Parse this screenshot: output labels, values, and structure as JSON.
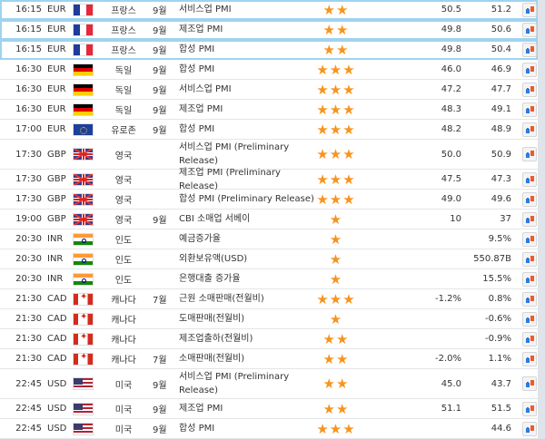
{
  "colors": {
    "star": "#f7941d",
    "highlight_border": "#9fd3ee"
  },
  "rows": [
    {
      "time": "16:15",
      "currency": "EUR",
      "flag": "fr",
      "country": "프랑스",
      "month": "9월",
      "event": "서비스업 PMI",
      "stars": "★★",
      "forecast": "50.5",
      "previous": "51.2",
      "highlight": true
    },
    {
      "time": "16:15",
      "currency": "EUR",
      "flag": "fr",
      "country": "프랑스",
      "month": "9월",
      "event": "제조업 PMI",
      "stars": "★★",
      "forecast": "49.8",
      "previous": "50.6",
      "highlight": true
    },
    {
      "time": "16:15",
      "currency": "EUR",
      "flag": "fr",
      "country": "프랑스",
      "month": "9월",
      "event": "합성 PMI",
      "stars": "★★",
      "forecast": "49.8",
      "previous": "50.4",
      "highlight": true
    },
    {
      "time": "16:30",
      "currency": "EUR",
      "flag": "de",
      "country": "독일",
      "month": "9월",
      "event": "합성 PMI",
      "stars": "★★★",
      "forecast": "46.0",
      "previous": "46.9"
    },
    {
      "time": "16:30",
      "currency": "EUR",
      "flag": "de",
      "country": "독일",
      "month": "9월",
      "event": "서비스업 PMI",
      "stars": "★★★",
      "forecast": "47.2",
      "previous": "47.7"
    },
    {
      "time": "16:30",
      "currency": "EUR",
      "flag": "de",
      "country": "독일",
      "month": "9월",
      "event": "제조업 PMI",
      "stars": "★★★",
      "forecast": "48.3",
      "previous": "49.1"
    },
    {
      "time": "17:00",
      "currency": "EUR",
      "flag": "eu",
      "country": "유로존",
      "month": "9월",
      "event": "합성 PMI",
      "stars": "★★★",
      "forecast": "48.2",
      "previous": "48.9"
    },
    {
      "time": "17:30",
      "currency": "GBP",
      "flag": "gb",
      "country": "영국",
      "month": "",
      "event": "서비스업 PMI (Preliminary Release)",
      "stars": "★★★",
      "forecast": "50.0",
      "previous": "50.9",
      "tall": true
    },
    {
      "time": "17:30",
      "currency": "GBP",
      "flag": "gb",
      "country": "영국",
      "month": "",
      "event": "제조업 PMI (Preliminary Release)",
      "stars": "★★★",
      "forecast": "47.5",
      "previous": "47.3"
    },
    {
      "time": "17:30",
      "currency": "GBP",
      "flag": "gb",
      "country": "영국",
      "month": "",
      "event": "합성 PMI (Preliminary Release)",
      "stars": "★★★",
      "forecast": "49.0",
      "previous": "49.6"
    },
    {
      "time": "19:00",
      "currency": "GBP",
      "flag": "gb",
      "country": "영국",
      "month": "9월",
      "event": "CBI 소매업 서베이",
      "stars": "★",
      "forecast": "10",
      "previous": "37"
    },
    {
      "time": "20:30",
      "currency": "INR",
      "flag": "in",
      "country": "인도",
      "month": "",
      "event": "예금증가율",
      "stars": "★",
      "forecast": "",
      "previous": "9.5%"
    },
    {
      "time": "20:30",
      "currency": "INR",
      "flag": "in",
      "country": "인도",
      "month": "",
      "event": "외환보유액(USD)",
      "stars": "★",
      "forecast": "",
      "previous": "550.87B"
    },
    {
      "time": "20:30",
      "currency": "INR",
      "flag": "in",
      "country": "인도",
      "month": "",
      "event": "은행대출 증가율",
      "stars": "★",
      "forecast": "",
      "previous": "15.5%"
    },
    {
      "time": "21:30",
      "currency": "CAD",
      "flag": "ca",
      "country": "캐나다",
      "month": "7월",
      "event": "근원 소매판매(전월비)",
      "stars": "★★★",
      "forecast": "-1.2%",
      "previous": "0.8%"
    },
    {
      "time": "21:30",
      "currency": "CAD",
      "flag": "ca",
      "country": "캐나다",
      "month": "",
      "event": "도매판매(전월비)",
      "stars": "★",
      "forecast": "",
      "previous": "-0.6%"
    },
    {
      "time": "21:30",
      "currency": "CAD",
      "flag": "ca",
      "country": "캐나다",
      "month": "",
      "event": "제조업출하(전월비)",
      "stars": "★★",
      "forecast": "",
      "previous": "-0.9%"
    },
    {
      "time": "21:30",
      "currency": "CAD",
      "flag": "ca",
      "country": "캐나다",
      "month": "7월",
      "event": "소매판매(전월비)",
      "stars": "★★",
      "forecast": "-2.0%",
      "previous": "1.1%"
    },
    {
      "time": "22:45",
      "currency": "USD",
      "flag": "us",
      "country": "미국",
      "month": "9월",
      "event": "서비스업 PMI (Preliminary Release)",
      "stars": "★★",
      "forecast": "45.0",
      "previous": "43.7",
      "tall": true
    },
    {
      "time": "22:45",
      "currency": "USD",
      "flag": "us",
      "country": "미국",
      "month": "9월",
      "event": "제조업 PMI",
      "stars": "★★",
      "forecast": "51.1",
      "previous": "51.5"
    },
    {
      "time": "22:45",
      "currency": "USD",
      "flag": "us",
      "country": "미국",
      "month": "9월",
      "event": "합성 PMI",
      "stars": "★★★",
      "forecast": "",
      "previous": "44.6"
    }
  ]
}
